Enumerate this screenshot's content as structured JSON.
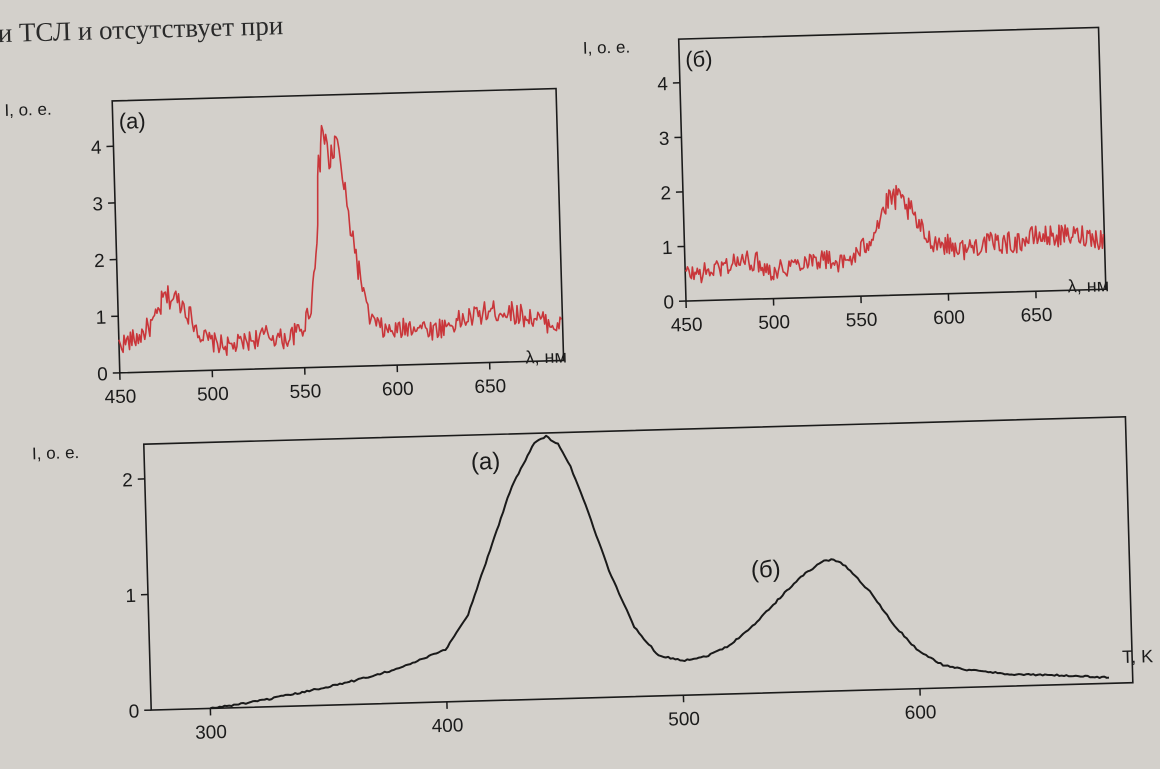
{
  "header_text": "ри ТСЛ и отсутствует при",
  "chart_data": [
    {
      "id": "spectrum_a",
      "type": "line",
      "panel_label": "(а)",
      "ylabel": "I, о. е.",
      "xlabel": "λ, нм",
      "xlim": [
        450,
        690
      ],
      "ylim": [
        0,
        4.8
      ],
      "xticks": [
        450,
        500,
        550,
        600,
        650
      ],
      "yticks": [
        0,
        1,
        2,
        3,
        4
      ],
      "color": "#c9363a",
      "series": [
        {
          "x": [
            450,
            460,
            470,
            475,
            480,
            485,
            490,
            495,
            500,
            510,
            520,
            530,
            540,
            550,
            555,
            558,
            561,
            563,
            565,
            567,
            570,
            573,
            575,
            578,
            580,
            583,
            585,
            590,
            595,
            600,
            610,
            620,
            630,
            640,
            650,
            660,
            670,
            680,
            690
          ],
          "y": [
            0.5,
            0.6,
            0.9,
            1.3,
            1.3,
            1.2,
            0.9,
            0.6,
            0.5,
            0.4,
            0.5,
            0.6,
            0.5,
            0.7,
            1.2,
            2.2,
            3.6,
            4.3,
            3.8,
            3.6,
            4.0,
            3.5,
            2.8,
            2.3,
            1.8,
            1.3,
            0.9,
            0.7,
            0.6,
            0.6,
            0.7,
            0.6,
            0.7,
            0.8,
            0.9,
            0.9,
            0.8,
            0.7,
            0.6
          ]
        }
      ]
    },
    {
      "id": "spectrum_b",
      "type": "line",
      "panel_label": "(б)",
      "ylabel": "I, о. е.",
      "xlabel": "λ, нм",
      "xlim": [
        450,
        690
      ],
      "ylim": [
        0,
        4.8
      ],
      "xticks": [
        450,
        500,
        550,
        600,
        650
      ],
      "yticks": [
        0,
        1,
        2,
        3,
        4
      ],
      "color": "#c9363a",
      "series": [
        {
          "x": [
            450,
            460,
            470,
            480,
            490,
            500,
            510,
            520,
            530,
            540,
            550,
            555,
            560,
            565,
            570,
            575,
            580,
            585,
            590,
            600,
            610,
            620,
            630,
            640,
            650,
            660,
            670,
            680,
            690
          ],
          "y": [
            0.5,
            0.5,
            0.6,
            0.7,
            0.7,
            0.5,
            0.6,
            0.7,
            0.7,
            0.6,
            0.8,
            1.0,
            1.3,
            1.6,
            1.8,
            1.7,
            1.5,
            1.2,
            1.0,
            0.9,
            0.8,
            0.9,
            0.9,
            0.9,
            1.0,
            1.0,
            1.0,
            1.0,
            0.9
          ]
        }
      ]
    },
    {
      "id": "tsl",
      "type": "line",
      "ylabel": "I, о. е.",
      "xlabel": "T, K",
      "xlim": [
        275,
        690
      ],
      "ylim": [
        0,
        2.3
      ],
      "xticks": [
        300,
        400,
        500,
        600
      ],
      "yticks": [
        0,
        1,
        2
      ],
      "color": "#1a1a1a",
      "annotations": [
        {
          "text": "(а)",
          "x": 413,
          "y": 2.0
        },
        {
          "text": "(б)",
          "x": 530,
          "y": 1.0
        }
      ],
      "series": [
        {
          "x": [
            300,
            320,
            340,
            360,
            380,
            400,
            410,
            420,
            430,
            440,
            445,
            450,
            455,
            460,
            470,
            480,
            490,
            500,
            510,
            520,
            530,
            540,
            550,
            560,
            565,
            570,
            580,
            590,
            600,
            610,
            620,
            640,
            660,
            680
          ],
          "y": [
            0.0,
            0.05,
            0.12,
            0.2,
            0.3,
            0.45,
            0.75,
            1.3,
            1.85,
            2.22,
            2.27,
            2.2,
            2.0,
            1.72,
            1.1,
            0.6,
            0.35,
            0.3,
            0.33,
            0.42,
            0.58,
            0.78,
            0.98,
            1.12,
            1.14,
            1.08,
            0.85,
            0.55,
            0.32,
            0.2,
            0.15,
            0.1,
            0.08,
            0.05
          ]
        }
      ]
    }
  ]
}
